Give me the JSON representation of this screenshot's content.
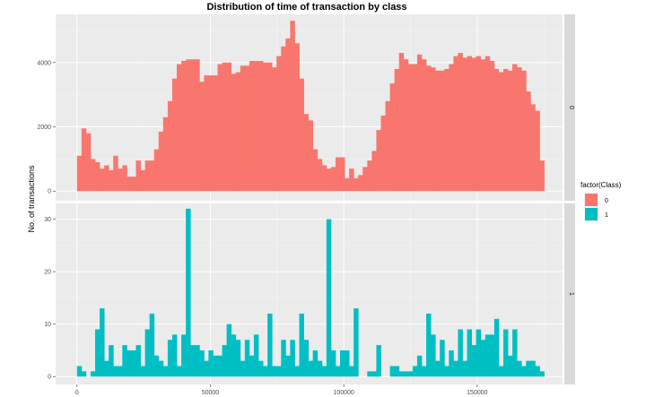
{
  "chart_data": {
    "type": "bar",
    "title": "Distribution of time of transaction by class",
    "xlabel": "",
    "ylabel": "No. of transactions",
    "xlim": [
      -8000,
      182000
    ],
    "x_ticks": [
      0,
      50000,
      100000,
      150000
    ],
    "x_tick_labels": [
      "0",
      "50000",
      "100000",
      "150000"
    ],
    "bin_width": 1700,
    "grid": true,
    "legend": {
      "title": "factor(Class)",
      "position": "right",
      "entries": [
        "0",
        "1"
      ]
    },
    "facets": [
      {
        "strip_label": "0",
        "color": "#F8766D",
        "ylim": [
          -300,
          5500
        ],
        "y_ticks": [
          0,
          2000,
          4000
        ],
        "y_tick_labels": [
          "0",
          "2000",
          "4000"
        ],
        "bins": [
          [
            0,
            1100
          ],
          [
            1700,
            1950
          ],
          [
            3400,
            1800
          ],
          [
            5100,
            1000
          ],
          [
            6800,
            900
          ],
          [
            8500,
            700
          ],
          [
            10200,
            800
          ],
          [
            11900,
            650
          ],
          [
            13600,
            1100
          ],
          [
            15300,
            700
          ],
          [
            17000,
            800
          ],
          [
            18700,
            450
          ],
          [
            20400,
            450
          ],
          [
            22100,
            950
          ],
          [
            23800,
            650
          ],
          [
            25500,
            950
          ],
          [
            27200,
            950
          ],
          [
            28900,
            1300
          ],
          [
            30600,
            1850
          ],
          [
            32300,
            2300
          ],
          [
            34000,
            2800
          ],
          [
            35700,
            3500
          ],
          [
            37400,
            3950
          ],
          [
            39100,
            4050
          ],
          [
            40800,
            4100
          ],
          [
            42500,
            4100
          ],
          [
            44200,
            4100
          ],
          [
            45900,
            3400
          ],
          [
            47600,
            3600
          ],
          [
            49300,
            3600
          ],
          [
            51000,
            3600
          ],
          [
            52700,
            3950
          ],
          [
            54400,
            4000
          ],
          [
            56100,
            4000
          ],
          [
            57800,
            3650
          ],
          [
            59500,
            3700
          ],
          [
            61200,
            3900
          ],
          [
            62900,
            3900
          ],
          [
            64600,
            4050
          ],
          [
            66300,
            4050
          ],
          [
            68000,
            4050
          ],
          [
            69700,
            4000
          ],
          [
            71400,
            4000
          ],
          [
            73100,
            3850
          ],
          [
            74800,
            4200
          ],
          [
            76500,
            4500
          ],
          [
            78200,
            4750
          ],
          [
            79900,
            5300
          ],
          [
            81600,
            4600
          ],
          [
            83300,
            3500
          ],
          [
            85000,
            2400
          ],
          [
            86700,
            2200
          ],
          [
            88400,
            1300
          ],
          [
            90100,
            1000
          ],
          [
            91800,
            800
          ],
          [
            93500,
            700
          ],
          [
            95200,
            750
          ],
          [
            96900,
            1050
          ],
          [
            98600,
            1050
          ],
          [
            100300,
            400
          ],
          [
            102000,
            700
          ],
          [
            103700,
            400
          ],
          [
            105400,
            500
          ],
          [
            107100,
            750
          ],
          [
            108800,
            950
          ],
          [
            110500,
            1250
          ],
          [
            112200,
            1900
          ],
          [
            113900,
            2350
          ],
          [
            115600,
            2800
          ],
          [
            117300,
            3350
          ],
          [
            119000,
            3800
          ],
          [
            120700,
            4300
          ],
          [
            122400,
            4100
          ],
          [
            124100,
            3950
          ],
          [
            125800,
            3950
          ],
          [
            127500,
            4250
          ],
          [
            129200,
            4100
          ],
          [
            130900,
            3900
          ],
          [
            132600,
            3850
          ],
          [
            134300,
            3750
          ],
          [
            136000,
            3750
          ],
          [
            137700,
            3800
          ],
          [
            139400,
            3950
          ],
          [
            141100,
            4200
          ],
          [
            142800,
            4300
          ],
          [
            144500,
            4150
          ],
          [
            146200,
            4200
          ],
          [
            147900,
            4150
          ],
          [
            149600,
            4200
          ],
          [
            151300,
            4100
          ],
          [
            153000,
            4200
          ],
          [
            154700,
            4050
          ],
          [
            156400,
            3800
          ],
          [
            158100,
            3700
          ],
          [
            159800,
            3800
          ],
          [
            161500,
            3750
          ],
          [
            163200,
            3950
          ],
          [
            164900,
            3850
          ],
          [
            166600,
            3750
          ],
          [
            168300,
            3100
          ],
          [
            170000,
            2700
          ],
          [
            171700,
            2500
          ],
          [
            173400,
            950
          ]
        ]
      },
      {
        "strip_label": "1",
        "color": "#00BFC4",
        "ylim": [
          -1.5,
          33
        ],
        "y_ticks": [
          0,
          10,
          20,
          30
        ],
        "y_tick_labels": [
          "0",
          "10",
          "20",
          "30"
        ],
        "bins": [
          [
            0,
            2
          ],
          [
            1700,
            1
          ],
          [
            5100,
            1
          ],
          [
            6800,
            9
          ],
          [
            8500,
            13
          ],
          [
            10200,
            3
          ],
          [
            11900,
            6
          ],
          [
            13600,
            2
          ],
          [
            15300,
            2
          ],
          [
            17000,
            6
          ],
          [
            18700,
            5
          ],
          [
            20400,
            5
          ],
          [
            22100,
            6
          ],
          [
            23800,
            2
          ],
          [
            25500,
            9
          ],
          [
            27200,
            12
          ],
          [
            28900,
            4
          ],
          [
            30600,
            3
          ],
          [
            32300,
            2
          ],
          [
            34000,
            7
          ],
          [
            35700,
            8
          ],
          [
            37400,
            2
          ],
          [
            39100,
            8
          ],
          [
            40800,
            32
          ],
          [
            42500,
            6
          ],
          [
            44200,
            6
          ],
          [
            45900,
            5
          ],
          [
            47600,
            3
          ],
          [
            49300,
            5
          ],
          [
            51000,
            4
          ],
          [
            52700,
            4
          ],
          [
            54400,
            6
          ],
          [
            56100,
            10
          ],
          [
            57800,
            8
          ],
          [
            59500,
            7
          ],
          [
            61200,
            3
          ],
          [
            62900,
            7
          ],
          [
            64600,
            4
          ],
          [
            66300,
            8
          ],
          [
            68000,
            3
          ],
          [
            69700,
            2
          ],
          [
            71400,
            12
          ],
          [
            73100,
            2
          ],
          [
            74800,
            2
          ],
          [
            76500,
            7
          ],
          [
            78200,
            4
          ],
          [
            79900,
            7
          ],
          [
            81600,
            2
          ],
          [
            83300,
            12
          ],
          [
            85000,
            7
          ],
          [
            86700,
            3
          ],
          [
            88400,
            5
          ],
          [
            90100,
            3
          ],
          [
            91800,
            2
          ],
          [
            93500,
            30
          ],
          [
            95200,
            5
          ],
          [
            96900,
            2
          ],
          [
            98600,
            5
          ],
          [
            100300,
            5
          ],
          [
            102000,
            2
          ],
          [
            103700,
            13
          ],
          [
            108800,
            1
          ],
          [
            110500,
            1
          ],
          [
            112200,
            6
          ],
          [
            117300,
            2
          ],
          [
            119000,
            2
          ],
          [
            120700,
            1
          ],
          [
            122400,
            1
          ],
          [
            124100,
            1
          ],
          [
            125800,
            2
          ],
          [
            127500,
            4
          ],
          [
            129200,
            2
          ],
          [
            130900,
            12
          ],
          [
            132600,
            8
          ],
          [
            134300,
            3
          ],
          [
            136000,
            7
          ],
          [
            137700,
            2
          ],
          [
            139400,
            5
          ],
          [
            141100,
            3
          ],
          [
            142800,
            9
          ],
          [
            144500,
            3
          ],
          [
            146200,
            9
          ],
          [
            147900,
            6
          ],
          [
            149600,
            9
          ],
          [
            151300,
            7
          ],
          [
            153000,
            8
          ],
          [
            154700,
            8
          ],
          [
            156400,
            11
          ],
          [
            158100,
            2
          ],
          [
            159800,
            9
          ],
          [
            161500,
            4
          ],
          [
            163200,
            9
          ],
          [
            164900,
            3
          ],
          [
            166600,
            2
          ],
          [
            168300,
            3
          ],
          [
            170000,
            3
          ],
          [
            171700,
            2
          ],
          [
            173400,
            1
          ]
        ]
      }
    ]
  }
}
